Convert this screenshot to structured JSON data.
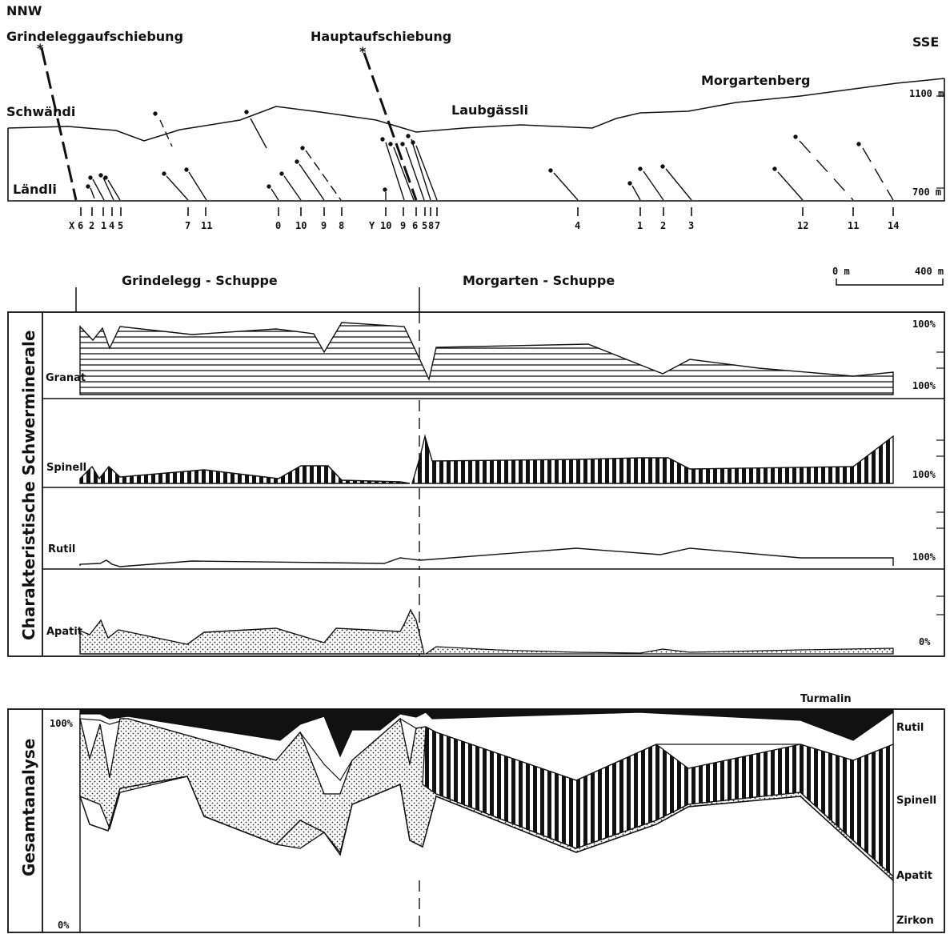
{
  "profile": {
    "dir_left": "NNW",
    "dir_right": "SSE",
    "fault1": "Grindeleggaufschiebung",
    "fault2": "Hauptaufschiebung",
    "places": [
      "Schwändi",
      "Ländli",
      "Laubgässli",
      "Morgartenberg"
    ],
    "elev_high": "1100 m",
    "elev_low": "700 m",
    "samples": [
      "X",
      "6",
      "2",
      "1",
      "4",
      "5",
      "7",
      "11",
      "0",
      "10",
      "9",
      "8",
      "Y",
      "10",
      "9",
      "6",
      "5",
      "8",
      "7",
      "4",
      "1",
      "2",
      "3",
      "12",
      "11",
      "14"
    ]
  },
  "scale": {
    "left": "0 m",
    "right": "400 m"
  },
  "units": {
    "left": "Grindelegg - Schuppe",
    "right": "Morgarten - Schuppe"
  },
  "panel1": {
    "side_title": "Charakteristische Schwerminerale",
    "minerals": [
      "Granat",
      "Spinell",
      "Rutil",
      "Apatit"
    ],
    "right_labels": [
      "100%",
      "100%",
      "100%",
      "100%",
      "0%"
    ]
  },
  "panel2": {
    "side_title": "Gesamtanalyse",
    "y_top": "100%",
    "y_bottom": "0%",
    "top_label": "Turmalin",
    "legend": [
      "Rutil",
      "Spinell",
      "Apatit",
      "Zirkon"
    ]
  },
  "colors": {
    "ink": "#111111",
    "paper": "#ffffff"
  }
}
